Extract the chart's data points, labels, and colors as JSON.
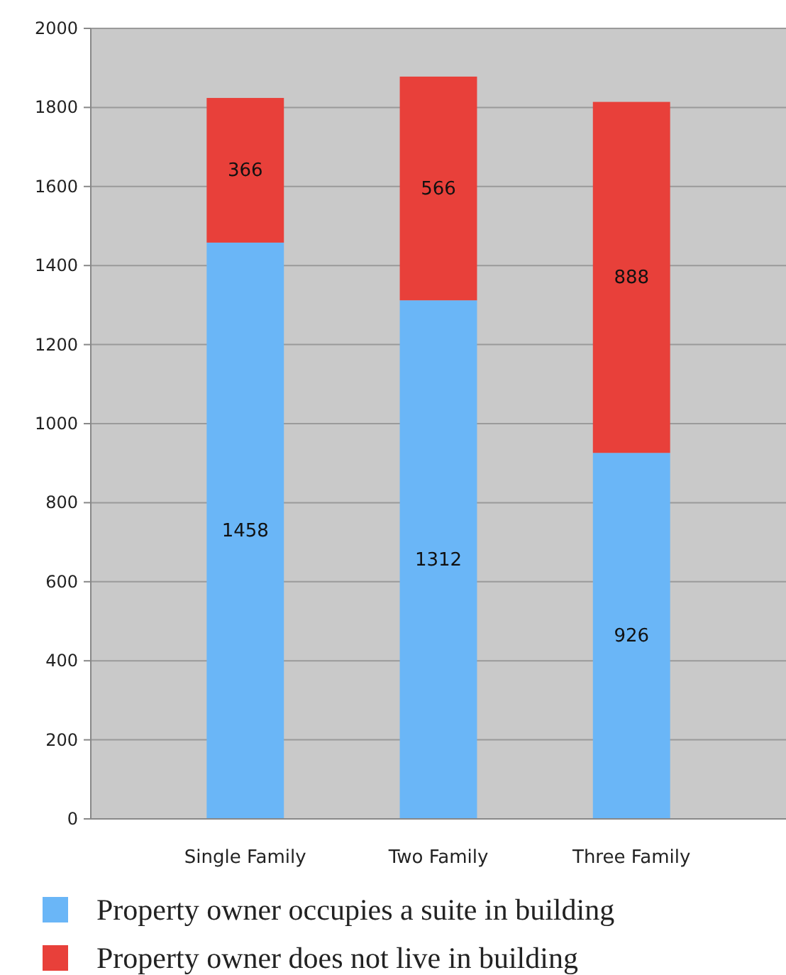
{
  "chart_data": {
    "type": "bar",
    "stacked": true,
    "categories": [
      "Single Family",
      "Two Family",
      "Three Family"
    ],
    "series": [
      {
        "name": "Property owner occupies a suite in building",
        "color": "#6ab6f7",
        "values": [
          1458,
          1312,
          926
        ]
      },
      {
        "name": "Property owner does not live in building",
        "color": "#e8403a",
        "values": [
          366,
          566,
          888
        ]
      }
    ],
    "ylim": [
      0,
      2000
    ],
    "yticks": [
      0,
      200,
      400,
      600,
      800,
      1000,
      1200,
      1400,
      1600,
      1800,
      2000
    ],
    "grid": "y",
    "legend": "bottom",
    "data_labels": true
  }
}
